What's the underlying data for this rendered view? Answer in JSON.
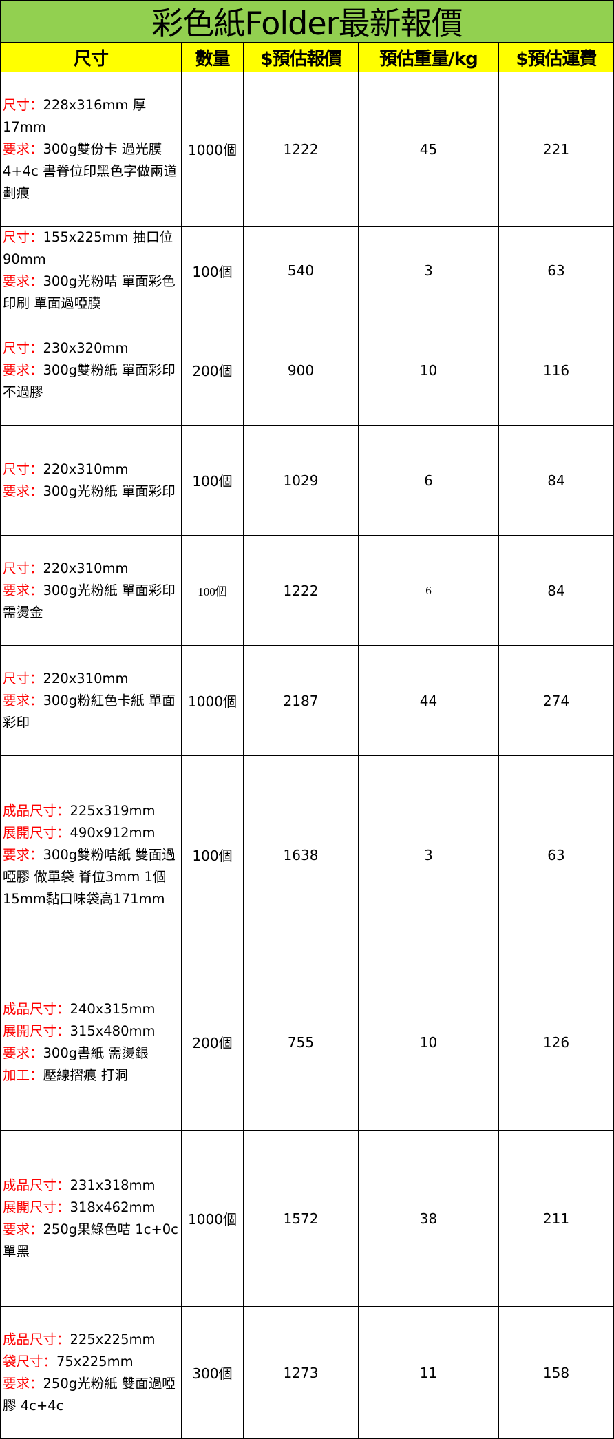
{
  "title": "彩色紙Folder最新報價",
  "colors": {
    "title_bg": "#92d050",
    "header_bg": "#ffff00",
    "label_red": "#ff0000"
  },
  "headers": [
    "尺寸",
    "數量",
    "$預估報價",
    "預估重量/kg",
    "$預估運費"
  ],
  "rows": [
    {
      "spec": [
        {
          "label": "尺寸：",
          "value": "228x316mm 厚17mm"
        },
        {
          "label": "要求：",
          "value": "300g雙份卡 過光膜4+4c 書脊位印黑色字做兩道劃痕"
        }
      ],
      "qty": "1000個",
      "price": "1222",
      "weight": "45",
      "shipping": "221"
    },
    {
      "spec": [
        {
          "label": "尺寸：",
          "value": "155x225mm 抽口位90mm"
        },
        {
          "label": "要求：",
          "value": "300g光粉咭 單面彩色印刷 單面過啞膜"
        }
      ],
      "qty": "100個",
      "price": "540",
      "weight": "3",
      "shipping": "63"
    },
    {
      "spec": [
        {
          "label": "尺寸：",
          "value": "230x320mm"
        },
        {
          "label": "要求：",
          "value": "300g雙粉紙 單面彩印 不過膠"
        }
      ],
      "qty": "200個",
      "price": "900",
      "weight": "10",
      "shipping": "116"
    },
    {
      "spec": [
        {
          "label": "尺寸：",
          "value": "220x310mm"
        },
        {
          "label": "要求：",
          "value": "300g光粉紙 單面彩印"
        }
      ],
      "qty": "100個",
      "price": "1029",
      "weight": "6",
      "shipping": "84"
    },
    {
      "spec": [
        {
          "label": "尺寸：",
          "value": "220x310mm"
        },
        {
          "label": "要求：",
          "value": "300g光粉紙 單面彩印 需燙金"
        }
      ],
      "qty": "100個",
      "price": "1222",
      "weight": "6",
      "shipping": "84",
      "serif": true
    },
    {
      "spec": [
        {
          "label": "尺寸：",
          "value": "220x310mm"
        },
        {
          "label": "要求：",
          "value": "300g粉紅色卡紙 單面彩印"
        }
      ],
      "qty": "1000個",
      "price": "2187",
      "weight": "44",
      "shipping": "274"
    },
    {
      "spec": [
        {
          "label": "成品尺寸：",
          "value": "225x319mm"
        },
        {
          "label": "展開尺寸：",
          "value": "490x912mm"
        },
        {
          "label": "要求：",
          "value": "300g雙粉咭紙  雙面過啞膠 做單袋 脊位3mm 1個15mm黏口味袋高171mm"
        }
      ],
      "qty": "100個",
      "price": "1638",
      "weight": "3",
      "shipping": "63"
    },
    {
      "spec": [
        {
          "label": "成品尺寸：",
          "value": "240x315mm"
        },
        {
          "label": "展開尺寸：",
          "value": "315x480mm"
        },
        {
          "label": "要求：",
          "value": "300g書紙 需燙銀"
        },
        {
          "label": "加工：",
          "value": "壓線摺痕 打洞"
        }
      ],
      "qty": "200個",
      "price": "755",
      "weight": "10",
      "shipping": "126"
    },
    {
      "spec": [
        {
          "label": "成品尺寸：",
          "value": "231x318mm"
        },
        {
          "label": "展開尺寸：",
          "value": "318x462mm"
        },
        {
          "label": "要求：",
          "value": "250g果綠色咭 1c+0c單黑"
        }
      ],
      "qty": "1000個",
      "price": "1572",
      "weight": "38",
      "shipping": "211"
    },
    {
      "spec": [
        {
          "label": "成品尺寸：",
          "value": "225x225mm"
        },
        {
          "label": "袋尺寸：",
          "value": "75x225mm"
        },
        {
          "label": "要求：",
          "value": "250g光粉紙 雙面過啞膠 4c+4c"
        }
      ],
      "qty": "300個",
      "price": "1273",
      "weight": "11",
      "shipping": "158"
    }
  ]
}
